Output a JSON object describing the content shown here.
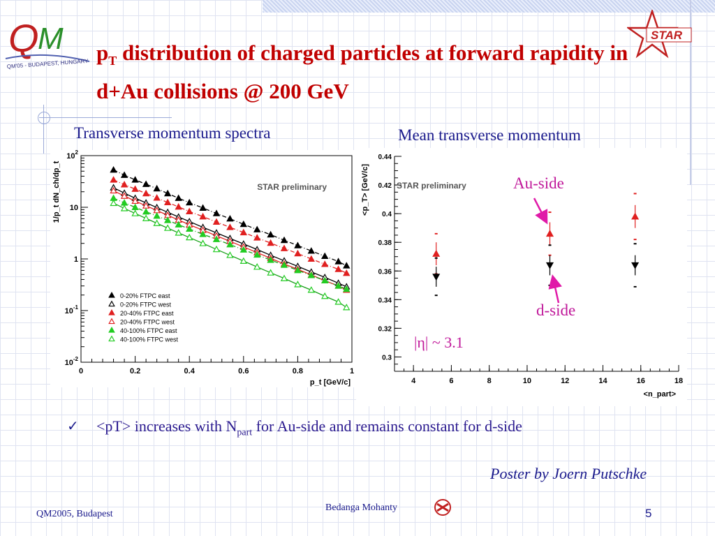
{
  "slide": {
    "title_p": "p",
    "title_sub": "T",
    "title_rest": " distribution of charged particles at forward rapidity in d+Au collisions @ 200 GeV",
    "left_subtitle": "Transverse momentum spectra",
    "right_subtitle": "Mean transverse momentum",
    "au_side_label": "Au-side",
    "d_side_label": "d-side",
    "eta_label": "|η| ~ 3.1",
    "bullet_text_a": "<pT> increases with N",
    "bullet_text_sub": "part",
    "bullet_text_b": " for Au-side and remains constant for d-side",
    "poster_credit": "Poster by Joern Putschke",
    "footer_left": "QM2005, Budapest",
    "footer_center": "Bedanga Mohanty",
    "page_number": "5",
    "qm_logo_text": "QM'05 - BUDAPEST, HUNGARY",
    "star_logo_text": "STAR",
    "colors": {
      "title": "#c00000",
      "text": "#1a1a8c",
      "annotation": "#c0189a"
    }
  },
  "chart_data": [
    {
      "type": "scatter",
      "id": "spectra",
      "xlabel": "p_t [GeV/c]",
      "ylabel": "1/p_t dN_ch/dp_t",
      "label": "STAR preliminary",
      "xlim": [
        0,
        1
      ],
      "ylim": [
        0.01,
        100
      ],
      "yscale": "log",
      "x_ticks": [
        "0",
        "0.2",
        "0.4",
        "0.6",
        "0.8",
        "1"
      ],
      "y_ticks": [
        "10^2",
        "10",
        "1",
        "10^-1",
        "10^-2"
      ],
      "legend_position": "bottom-left",
      "series": [
        {
          "name": "0-20% FTPC east",
          "marker": "filled-triangle",
          "color": "#000000",
          "fit": "dashdot",
          "x": [
            0.12,
            0.16,
            0.2,
            0.24,
            0.28,
            0.32,
            0.36,
            0.4,
            0.45,
            0.5,
            0.55,
            0.6,
            0.65,
            0.7,
            0.75,
            0.8,
            0.85,
            0.9,
            0.95,
            0.98
          ],
          "y": [
            53,
            42,
            34,
            28,
            23,
            18.5,
            15,
            12.3,
            9.7,
            7.6,
            6.0,
            4.7,
            3.7,
            2.95,
            2.3,
            1.82,
            1.43,
            1.13,
            0.89,
            0.74
          ]
        },
        {
          "name": "0-20% FTPC west",
          "marker": "open-triangle",
          "color": "#000000",
          "fit": "solid",
          "x": [
            0.12,
            0.16,
            0.2,
            0.24,
            0.28,
            0.32,
            0.36,
            0.4,
            0.45,
            0.5,
            0.55,
            0.6,
            0.65,
            0.7,
            0.75,
            0.8,
            0.85,
            0.9,
            0.95,
            0.98
          ],
          "y": [
            24,
            18.8,
            15,
            12.2,
            9.9,
            8.0,
            6.5,
            5.3,
            4.1,
            3.2,
            2.5,
            1.95,
            1.52,
            1.18,
            0.92,
            0.72,
            0.56,
            0.44,
            0.34,
            0.29
          ]
        },
        {
          "name": "20-40% FTPC east",
          "marker": "filled-triangle",
          "color": "#e02020",
          "fit": "dashdot",
          "x": [
            0.12,
            0.16,
            0.2,
            0.24,
            0.28,
            0.32,
            0.36,
            0.4,
            0.45,
            0.5,
            0.55,
            0.6,
            0.65,
            0.7,
            0.75,
            0.8,
            0.85,
            0.9,
            0.95,
            0.98
          ],
          "y": [
            34,
            27.5,
            22.5,
            18.5,
            15.2,
            12.4,
            10.2,
            8.3,
            6.6,
            5.2,
            4.1,
            3.25,
            2.57,
            2.03,
            1.6,
            1.27,
            1.0,
            0.79,
            0.63,
            0.53
          ]
        },
        {
          "name": "20-40% FTPC west",
          "marker": "open-triangle",
          "color": "#e02020",
          "fit": "solid",
          "x": [
            0.12,
            0.16,
            0.2,
            0.24,
            0.28,
            0.32,
            0.36,
            0.4,
            0.45,
            0.5,
            0.55,
            0.6,
            0.65,
            0.7,
            0.75,
            0.8,
            0.85,
            0.9,
            0.95,
            0.98
          ],
          "y": [
            21,
            16.5,
            13.2,
            10.7,
            8.7,
            7.0,
            5.7,
            4.6,
            3.6,
            2.8,
            2.2,
            1.71,
            1.33,
            1.03,
            0.8,
            0.63,
            0.49,
            0.38,
            0.3,
            0.25
          ]
        },
        {
          "name": "40-100% FTPC east",
          "marker": "filled-triangle",
          "color": "#22cc22",
          "fit": "dashdot",
          "x": [
            0.12,
            0.16,
            0.2,
            0.24,
            0.28,
            0.32,
            0.36,
            0.4,
            0.45,
            0.5,
            0.55,
            0.6,
            0.65,
            0.7,
            0.75,
            0.8,
            0.85,
            0.9,
            0.95,
            0.98
          ],
          "y": [
            15,
            12.2,
            10,
            8.2,
            6.8,
            5.6,
            4.6,
            3.8,
            3.0,
            2.4,
            1.9,
            1.5,
            1.2,
            0.95,
            0.76,
            0.6,
            0.48,
            0.38,
            0.3,
            0.26
          ]
        },
        {
          "name": "40-100% FTPC west",
          "marker": "open-triangle",
          "color": "#22cc22",
          "fit": "solid",
          "x": [
            0.12,
            0.16,
            0.2,
            0.24,
            0.28,
            0.32,
            0.36,
            0.4,
            0.45,
            0.5,
            0.55,
            0.6,
            0.65,
            0.7,
            0.75,
            0.8,
            0.85,
            0.9,
            0.95,
            0.98
          ],
          "y": [
            12,
            9.5,
            7.6,
            6.1,
            4.9,
            3.95,
            3.2,
            2.6,
            2.0,
            1.53,
            1.18,
            0.91,
            0.7,
            0.54,
            0.42,
            0.32,
            0.25,
            0.19,
            0.147,
            0.115
          ]
        }
      ]
    },
    {
      "type": "scatter",
      "id": "meanpt",
      "xlabel": "<n_part>",
      "ylabel": "<p_T> [GeV/c]",
      "label": "STAR preliminary",
      "xlim": [
        3,
        18
      ],
      "ylim": [
        0.29,
        0.44
      ],
      "x_ticks": [
        4,
        6,
        8,
        10,
        12,
        14,
        16,
        18
      ],
      "y_ticks": [
        0.3,
        0.32,
        0.34,
        0.36,
        0.38,
        0.4,
        0.42,
        0.44
      ],
      "series": [
        {
          "name": "Au-side",
          "marker": "filled-triangle",
          "color": "#e02020",
          "points": [
            {
              "x": 5.2,
              "y": 0.372,
              "err": 0.008,
              "sys": 0.014
            },
            {
              "x": 11.2,
              "y": 0.386,
              "err": 0.008,
              "sys": 0.015
            },
            {
              "x": 15.7,
              "y": 0.398,
              "err": 0.008,
              "sys": 0.016
            }
          ]
        },
        {
          "name": "d-side",
          "marker": "filled-down-triangle",
          "color": "#000000",
          "points": [
            {
              "x": 5.2,
              "y": 0.356,
              "err": 0.007,
              "sys": 0.013
            },
            {
              "x": 11.2,
              "y": 0.364,
              "err": 0.007,
              "sys": 0.014
            },
            {
              "x": 15.7,
              "y": 0.364,
              "err": 0.007,
              "sys": 0.015
            }
          ]
        }
      ]
    }
  ]
}
